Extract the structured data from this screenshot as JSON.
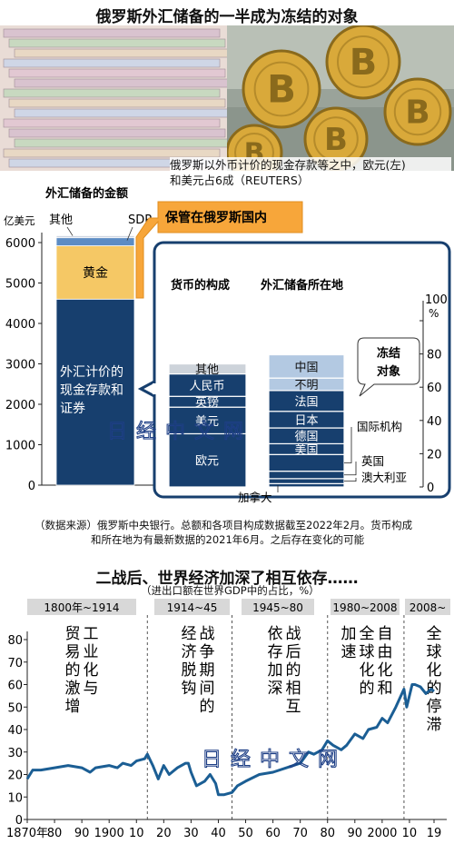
{
  "titles": {
    "top": "俄罗斯外汇储备的一半成为冻结的对象",
    "photo_caption_1": "俄罗斯以外币计价的现金存款等之中，欧元(左)",
    "photo_caption_2": "和美元占6成（REUTERS）",
    "source_1": "（数据来源）俄罗斯中央银行。总额和各项目构成数据截至2022年2月。货币构成",
    "source_2": "和所在地为有最新数据的2021年6月。之后存在变化的可能",
    "bottom": "二战后、世界经济加深了相互依存……",
    "bottom_sub": "（进出口额在世界GDP中的占比，%）",
    "watermark": "日经中文网"
  },
  "photos": {
    "left_icon": "euro-banknotes-icon",
    "right_icon": "bitcoin-coins-icon"
  },
  "colors": {
    "navy": "#173f6e",
    "gold": "#f5c865",
    "blue": "#5c8cc4",
    "lightblue": "#b3c9e2",
    "gray": "#cdd3da",
    "orange": "#f7a63a",
    "line": "#1b5e94",
    "period_bg": "#d8d8d8"
  },
  "chart_data": [
    {
      "type": "bar",
      "title": "外汇储备的金额",
      "ylabel": "亿美元",
      "ylim": [
        0,
        6500
      ],
      "yticks": [
        0,
        1000,
        2000,
        3000,
        4000,
        5000,
        6000
      ],
      "series": [
        {
          "name": "外汇计价的现金存款和证券",
          "value": 4600
        },
        {
          "name": "黄金",
          "value": 1320
        },
        {
          "name": "SDR",
          "value": 200
        },
        {
          "name": "其他",
          "value": 50
        }
      ],
      "callout": "保管在俄罗斯国内"
    },
    {
      "type": "bar",
      "title": "货币的构成",
      "ylabel": "%",
      "ylim": [
        0,
        100
      ],
      "yticks": [
        0,
        20,
        40,
        60,
        80,
        100
      ],
      "segments": [
        {
          "name": "欧元",
          "value": 32
        },
        {
          "name": "美元",
          "value": 16
        },
        {
          "name": "英镑",
          "value": 6.5
        },
        {
          "name": "人民币",
          "value": 13.5
        },
        {
          "name": "其他",
          "value": 6
        }
      ]
    },
    {
      "type": "bar",
      "title": "外汇储备所在地",
      "ylabel": "%",
      "ylim": [
        0,
        100
      ],
      "segments": [
        {
          "name": "加拿大",
          "value": 2
        },
        {
          "name": "澳大利亚",
          "value": 3
        },
        {
          "name": "英国",
          "value": 4.5
        },
        {
          "name": "国际机构",
          "value": 10
        },
        {
          "name": "美国",
          "value": 6.5
        },
        {
          "name": "德国",
          "value": 9.5
        },
        {
          "name": "日本",
          "value": 10
        },
        {
          "name": "法国",
          "value": 12.5
        },
        {
          "name": "不明",
          "value": 7.5
        },
        {
          "name": "中国",
          "value": 14
        }
      ],
      "frozen_label": "冻结对象",
      "frozen_top": 63
    },
    {
      "type": "line",
      "ylim": [
        0,
        80
      ],
      "yticks": [
        0,
        10,
        20,
        30,
        40,
        50,
        60,
        70,
        80
      ],
      "xlim": [
        1870,
        2020
      ],
      "xticks": [
        {
          "x": 1870,
          "label": "1870年"
        },
        {
          "x": 1880,
          "label": "80"
        },
        {
          "x": 1890,
          "label": "90"
        },
        {
          "x": 1900,
          "label": "1900"
        },
        {
          "x": 1910,
          "label": "10"
        },
        {
          "x": 1920,
          "label": "20"
        },
        {
          "x": 1930,
          "label": "30"
        },
        {
          "x": 1940,
          "label": "40"
        },
        {
          "x": 1950,
          "label": "50"
        },
        {
          "x": 1960,
          "label": "60"
        },
        {
          "x": 1970,
          "label": "70"
        },
        {
          "x": 1980,
          "label": "80"
        },
        {
          "x": 1990,
          "label": "90"
        },
        {
          "x": 2000,
          "label": "2000"
        },
        {
          "x": 2010,
          "label": "10"
        },
        {
          "x": 2019,
          "label": "19"
        }
      ],
      "x": [
        1870,
        1872,
        1875,
        1880,
        1885,
        1890,
        1893,
        1895,
        1900,
        1903,
        1905,
        1908,
        1910,
        1913,
        1914,
        1916,
        1918,
        1920,
        1922,
        1925,
        1928,
        1929,
        1930,
        1932,
        1935,
        1937,
        1939,
        1940,
        1942,
        1945,
        1947,
        1950,
        1955,
        1960,
        1965,
        1970,
        1973,
        1975,
        1978,
        1980,
        1982,
        1985,
        1987,
        1990,
        1993,
        1995,
        1998,
        2000,
        2002,
        2005,
        2008,
        2009,
        2010,
        2011,
        2012,
        2014,
        2016,
        2018,
        2019
      ],
      "values": [
        18,
        22,
        22,
        23,
        24,
        23,
        21,
        23,
        24,
        23,
        25,
        24,
        26,
        27,
        29,
        24,
        18,
        24,
        20,
        23,
        25,
        25,
        21,
        15,
        17,
        20,
        16,
        11,
        11,
        12,
        15,
        17,
        20,
        21,
        23,
        25,
        30,
        29,
        31,
        35,
        33,
        31,
        33,
        38,
        36,
        40,
        41,
        45,
        43,
        50,
        58,
        50,
        55,
        60,
        60,
        59,
        56,
        58,
        57
      ]
    }
  ],
  "periods": [
    {
      "label": "1800年~1914",
      "caption": [
        "工业化与",
        "贸易的激增"
      ]
    },
    {
      "label": "1914~45",
      "caption": [
        "战争期间的",
        "经济脱钩"
      ]
    },
    {
      "label": "1945~80",
      "caption": [
        "战后的相互",
        "依存加深"
      ]
    },
    {
      "label": "1980~2008",
      "caption": [
        "自由化和全",
        "球化的加速"
      ]
    },
    {
      "label": "2008~",
      "caption": [
        "全球化的停滞"
      ]
    }
  ]
}
